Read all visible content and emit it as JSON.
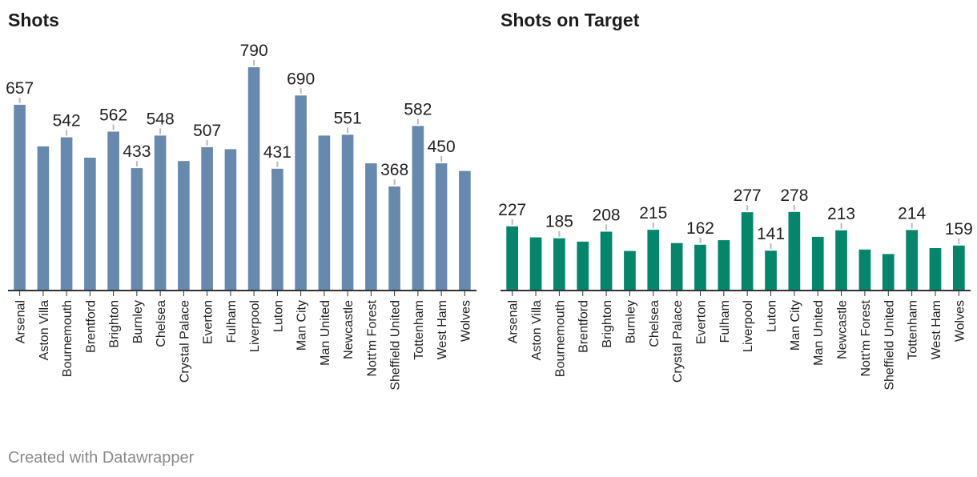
{
  "footer": "Created with Datawrapper",
  "colors": {
    "shots": "#6689ad",
    "on_target": "#03866a",
    "axis": "#333333",
    "leader": "#bbbbbb"
  },
  "chart_data": [
    {
      "type": "bar",
      "title": "Shots",
      "categories": [
        "Arsenal",
        "Aston Villa",
        "Bournemouth",
        "Brentford",
        "Brighton",
        "Burnley",
        "Chelsea",
        "Crystal Palace",
        "Everton",
        "Fulham",
        "Liverpool",
        "Luton",
        "Man City",
        "Man United",
        "Newcastle",
        "Nott'm Forest",
        "Sheffield United",
        "Tottenham",
        "West Ham",
        "Wolves"
      ],
      "values": [
        657,
        510,
        542,
        470,
        562,
        433,
        548,
        458,
        507,
        500,
        790,
        431,
        690,
        548,
        551,
        450,
        368,
        582,
        450,
        423
      ],
      "labeled": [
        true,
        false,
        true,
        false,
        true,
        true,
        true,
        false,
        true,
        false,
        true,
        true,
        true,
        false,
        true,
        false,
        true,
        true,
        true,
        false
      ],
      "ylim": [
        0,
        790
      ]
    },
    {
      "type": "bar",
      "title": "Shots on Target",
      "categories": [
        "Arsenal",
        "Aston Villa",
        "Bournemouth",
        "Brentford",
        "Brighton",
        "Burnley",
        "Chelsea",
        "Crystal Palace",
        "Everton",
        "Fulham",
        "Liverpool",
        "Luton",
        "Man City",
        "Man United",
        "Newcastle",
        "Nott'm Forest",
        "Sheffield United",
        "Tottenham",
        "West Ham",
        "Wolves"
      ],
      "values": [
        227,
        188,
        185,
        173,
        208,
        140,
        215,
        168,
        162,
        178,
        277,
        141,
        278,
        190,
        213,
        145,
        129,
        214,
        150,
        159
      ],
      "labeled": [
        true,
        false,
        true,
        false,
        true,
        false,
        true,
        false,
        true,
        false,
        true,
        true,
        true,
        false,
        true,
        false,
        false,
        true,
        false,
        true
      ],
      "ylim": [
        0,
        790
      ]
    }
  ]
}
